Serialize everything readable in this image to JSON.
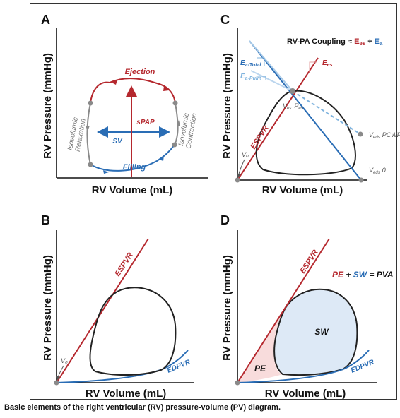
{
  "caption": "Basic elements of the right ventricular (RV) pressure-volume (PV) diagram.",
  "panels": {
    "A": {
      "letter": "A",
      "xlabel": "RV Volume (mL)",
      "ylabel": "RV Pressure (mmHg)",
      "labels": {
        "ejection": "Ejection",
        "filling": "Filling",
        "spap": "sPAP",
        "sv": "SV",
        "relaxation_1": "Isovolumic",
        "relaxation_2": "Relaxation",
        "contraction_1": "Isovolumic",
        "contraction_2": "Contraction"
      }
    },
    "B": {
      "letter": "B",
      "xlabel": "RV Volume (mL)",
      "ylabel": "RV Pressure (mmHg)",
      "labels": {
        "espvr": "ESPVR",
        "edpvr": "EDPVR",
        "v0": "V₀"
      }
    },
    "C": {
      "letter": "C",
      "xlabel": "RV Volume (mL)",
      "ylabel": "RV Pressure (mmHg)",
      "title_prefix": "RV-PA Coupling ≈ ",
      "title_ees": "E",
      "title_ees_sub": "es",
      "title_div": " ÷ ",
      "title_ea": "E",
      "title_ea_sub": "a",
      "labels": {
        "ea_total": "E",
        "ea_total_sub": "a-Total",
        "ea_pulm": "E",
        "ea_pulm_sub": "a-Pulm",
        "ees": "E",
        "ees_sub": "es",
        "espvr": "ESPVR",
        "ves_pes_v": "V",
        "ves_pes_v_sub": "es",
        "ves_pes_p": "P",
        "ves_pes_p_sub": "es",
        "ved_pcwp_v": "V",
        "ved_pcwp_sub": "eds",
        "ved_pcwp_p": "PCWP",
        "ved_0_v": "V",
        "ved_0_sub": "eds",
        "ved_0_p": "0",
        "v0": "V₀"
      }
    },
    "D": {
      "letter": "D",
      "xlabel": "RV Volume (mL)",
      "ylabel": "RV Pressure (mmHg)",
      "eq_pe": "PE",
      "eq_plus": " + ",
      "eq_sw": "SW",
      "eq_rest": " = PVA",
      "labels": {
        "espvr": "ESPVR",
        "edpvr": "EDPVR",
        "sw": "SW",
        "pe": "PE"
      }
    }
  },
  "colors": {
    "red": "#b5282e",
    "blue": "#2a6db5",
    "light_blue": "#7fb3de",
    "gray": "#8a8a8a",
    "loop": "#222222",
    "sw_fill": "#dde9f6",
    "pe_fill": "#f8dcdc"
  }
}
